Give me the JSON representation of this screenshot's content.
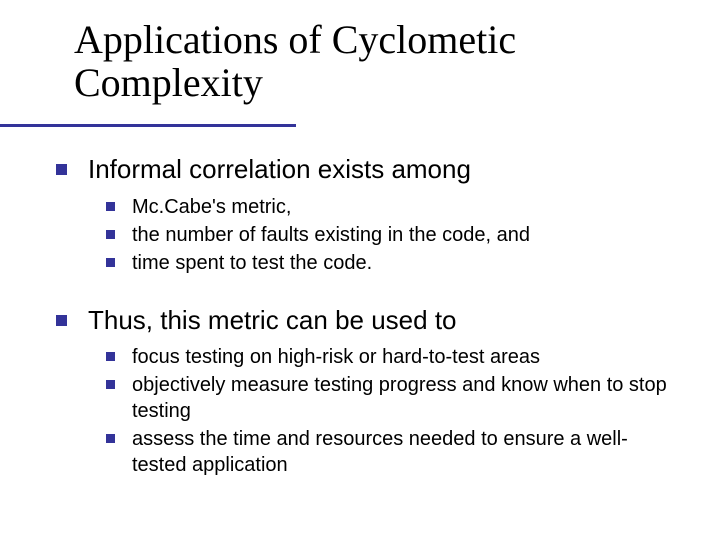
{
  "colors": {
    "bullet": "#333399",
    "underline": "#333399",
    "text": "#000000",
    "background": "#ffffff"
  },
  "typography": {
    "title_family": "Times New Roman",
    "body_family": "Verdana",
    "title_fontsize": 40,
    "level1_fontsize": 26,
    "level2_fontsize": 20
  },
  "layout": {
    "slide_width": 720,
    "slide_height": 540,
    "underline_width": 296,
    "underline_height": 3
  },
  "title": "Applications of Cyclometic Complexity",
  "points": [
    {
      "text": "Informal correlation exists among",
      "sub": [
        "Mc.Cabe's metric,",
        "the number of faults existing in the code, and",
        "time spent to test the code."
      ]
    },
    {
      "text": "Thus, this metric can be used to",
      "sub": [
        "focus testing on high-risk or hard-to-test areas",
        "objectively measure testing progress and know when to stop testing",
        "assess the time and resources needed to ensure a well-tested application"
      ]
    }
  ]
}
